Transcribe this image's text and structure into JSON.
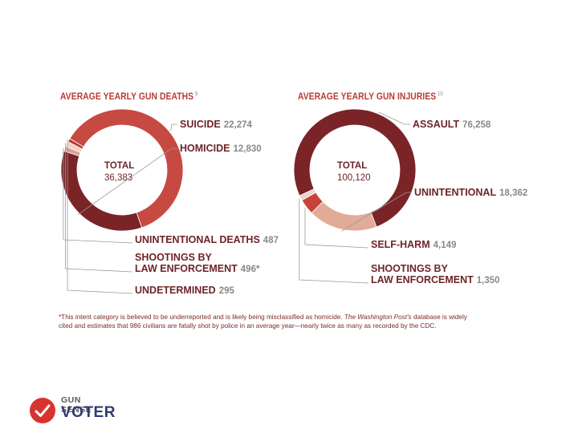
{
  "chart_data": [
    {
      "type": "pie",
      "title": "AVERAGE YEARLY GUN DEATHS",
      "title_ref": "9",
      "total_label": "TOTAL",
      "total_value": "36,383",
      "slices": [
        {
          "name": "SUICIDE",
          "value": 22274,
          "value_label": "22,274",
          "color": "#c74a42"
        },
        {
          "name": "HOMICIDE",
          "value": 12830,
          "value_label": "12,830",
          "color": "#7a2428"
        },
        {
          "name": "UNINTENTIONAL DEATHS",
          "value": 487,
          "value_label": "487",
          "color": "#dba294"
        },
        {
          "name": "SHOOTINGS BY LAW ENFORCEMENT",
          "name_lines": [
            "SHOOTINGS BY",
            "LAW ENFORCEMENT"
          ],
          "value": 496,
          "value_label": "496*",
          "color": "#efd2c8"
        },
        {
          "name": "UNDETERMINED",
          "value": 295,
          "value_label": "295",
          "color": "#b53830"
        }
      ]
    },
    {
      "type": "pie",
      "title": "AVERAGE YEARLY GUN INJURIES",
      "title_ref": "10",
      "total_label": "TOTAL",
      "total_value": "100,120",
      "slices": [
        {
          "name": "ASSAULT",
          "value": 76258,
          "value_label": "76,258",
          "color": "#7a2428"
        },
        {
          "name": "UNINTENTIONAL",
          "value": 18362,
          "value_label": "18,362",
          "color": "#e2ab98"
        },
        {
          "name": "SELF-HARM",
          "value": 4149,
          "value_label": "4,149",
          "color": "#c9423a"
        },
        {
          "name": "SHOOTINGS BY LAW ENFORCEMENT",
          "name_lines": [
            "SHOOTINGS BY",
            "LAW ENFORCEMENT"
          ],
          "value": 1350,
          "value_label": "1,350",
          "color": "#efd2c8"
        }
      ]
    }
  ],
  "footnote": {
    "line1_a": "*This intent category is believed to be underreported and is likely being misclassified as homicide. ",
    "line1_italic": "The Washington Post's",
    "line1_b": " database is widely",
    "line2": "cited and estimates that 986 civilians are fatally shot by police in an average year—nearly twice as many as recorded by the CDC."
  },
  "logo": {
    "line1": "GUN SENSE",
    "line2": "VOTER",
    "color": "#d8342f"
  }
}
